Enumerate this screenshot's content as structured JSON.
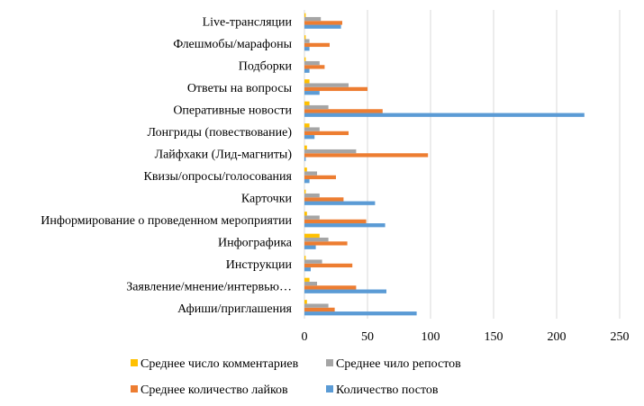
{
  "chart_data": {
    "type": "bar",
    "orientation": "horizontal",
    "title": "",
    "xlabel": "",
    "ylabel": "",
    "xlim": [
      0,
      250
    ],
    "xticks": [
      0,
      50,
      100,
      150,
      200,
      250
    ],
    "grid": true,
    "legend_position": "bottom",
    "categories": [
      "Live-трансляции",
      "Флешмобы/марафоны",
      "Подборки",
      "Ответы на вопросы",
      "Оперативные новости",
      "Лонгриды (повествование)",
      "Лайфхаки (Лид-магниты)",
      "Квизы/опросы/голосования",
      "Карточки",
      "Информирование о проведенном мероприятии",
      "Инфографика",
      "Инструкции",
      "Заявление/мнение/интервью…",
      "Афиши/приглашения"
    ],
    "series": [
      {
        "name": "Среднее число комментариев",
        "color": "#FFC000",
        "values": [
          1,
          1,
          1,
          4,
          4,
          4,
          2,
          2,
          1,
          2,
          12,
          1,
          4,
          2
        ]
      },
      {
        "name": "Среднее чило репостов",
        "color": "#A5A5A5",
        "values": [
          13,
          4,
          12,
          35,
          19,
          12,
          41,
          10,
          12,
          12,
          19,
          14,
          10,
          19
        ]
      },
      {
        "name": "Среднее количество лайков",
        "color": "#ED7D31",
        "values": [
          30,
          20,
          16,
          50,
          62,
          35,
          98,
          25,
          31,
          49,
          34,
          38,
          41,
          24
        ]
      },
      {
        "name": "Количество постов",
        "color": "#5B9BD5",
        "values": [
          29,
          4,
          4,
          12,
          222,
          8,
          1,
          4,
          56,
          64,
          9,
          5,
          65,
          89
        ]
      }
    ]
  }
}
